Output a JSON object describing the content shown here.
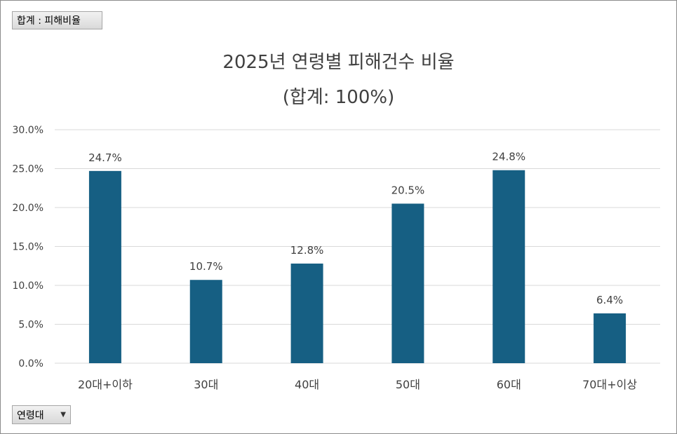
{
  "filters": {
    "value_field": "합계 : 피해비율",
    "axis_field": "연령대"
  },
  "chart_data": {
    "type": "bar",
    "title": "2025년 연령별 피해건수 비율",
    "subtitle": "(합계: 100%)",
    "categories": [
      "20대+이하",
      "30대",
      "40대",
      "50대",
      "60대",
      "70대+이상"
    ],
    "values": [
      24.7,
      10.7,
      12.8,
      20.5,
      24.8,
      6.4
    ],
    "data_labels": [
      "24.7%",
      "10.7%",
      "12.8%",
      "20.5%",
      "24.8%",
      "6.4%"
    ],
    "yticks": [
      "0.0%",
      "5.0%",
      "10.0%",
      "15.0%",
      "20.0%",
      "25.0%",
      "30.0%"
    ],
    "ylim": [
      0,
      30
    ],
    "grid": true,
    "legend": "none",
    "bar_color": "#165f83",
    "grid_color": "#d9d9d9"
  }
}
